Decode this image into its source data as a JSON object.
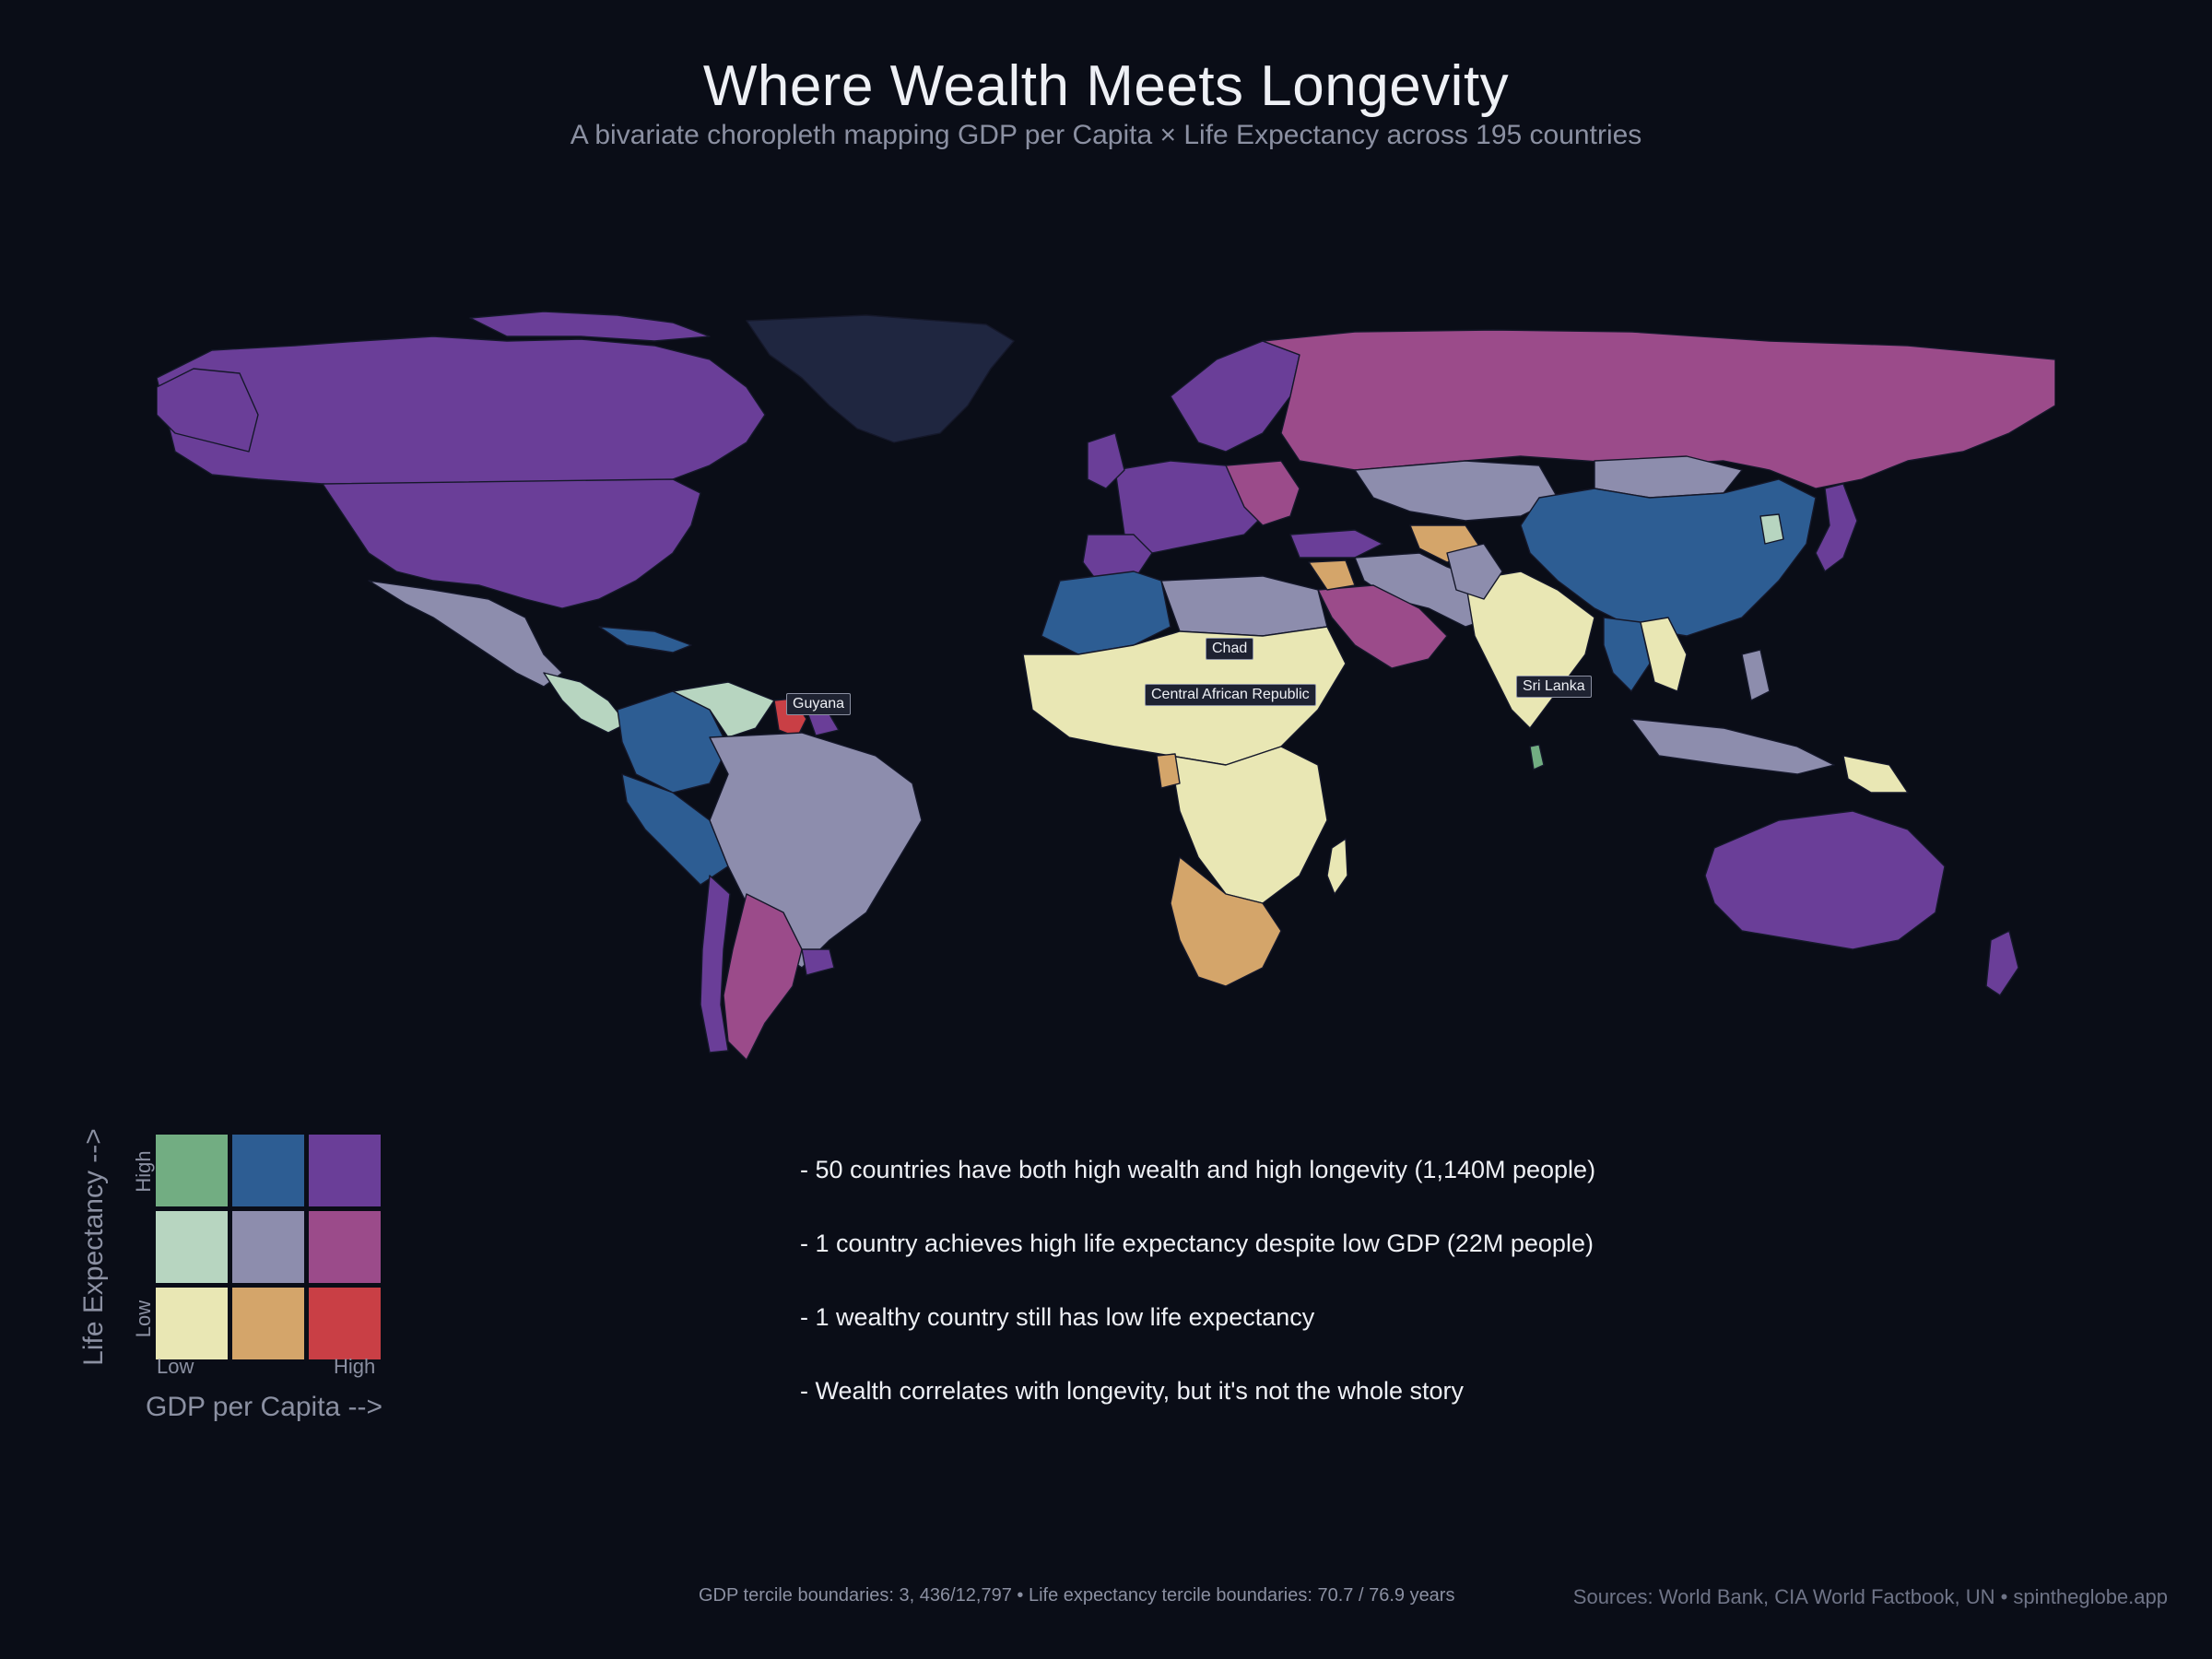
{
  "header": {
    "title": "Where Wealth Meets Longevity",
    "subtitle": "A bivariate choropleth mapping GDP per Capita × Life Expectancy across 195 countries"
  },
  "palette": {
    "low_gdp_high_life": "#72ad82",
    "mid_gdp_high_life": "#2d5d93",
    "high_gdp_high_life": "#6a3e98",
    "low_gdp_mid_life": "#b7d5c0",
    "mid_gdp_mid_life": "#8d8dad",
    "high_gdp_mid_life": "#9b4b8a",
    "low_gdp_low_life": "#e9e7b4",
    "mid_gdp_low_life": "#d4a56a",
    "high_gdp_low_life": "#c93f45",
    "no_data": "#1f2640",
    "background": "#0a0d17"
  },
  "map_labels": {
    "guyana": "Guyana",
    "chad": "Chad",
    "car": "Central African Republic",
    "sri_lanka": "Sri Lanka"
  },
  "legend": {
    "y_title": "Life Expectancy -->",
    "y_high": "High",
    "y_low": "Low",
    "x_title": "GDP per Capita -->",
    "x_low": "Low",
    "x_high": "High"
  },
  "insights": [
    "-  50 countries have both high wealth and high longevity (1,140M people)",
    "-  1 country achieves high life expectancy despite low GDP (22M people)",
    "-  1 wealthy country still has low life expectancy",
    "-  Wealth correlates with longevity, but it's not the whole story"
  ],
  "footer": {
    "boundaries": "GDP tercile boundaries: 3, 436/12,797  •  Life expectancy tercile boundaries: 70.7 / 76.9 years",
    "sources": "Sources: World Bank, CIA World Factbook, UN  •  spintheglobe.app"
  }
}
